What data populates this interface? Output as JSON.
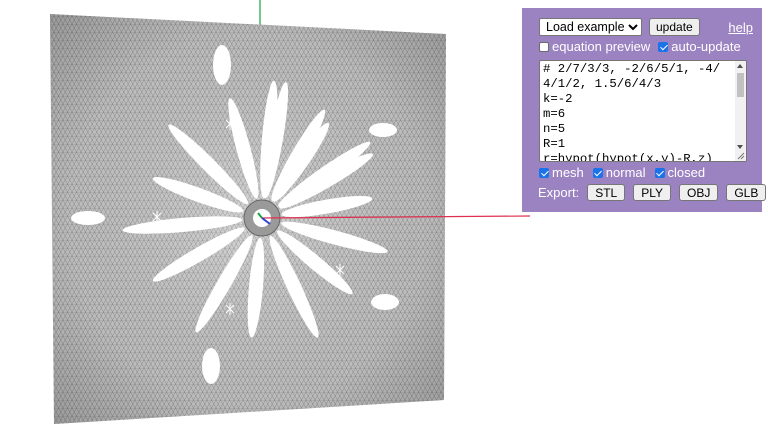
{
  "panel": {
    "example_select": "Load example...",
    "update_label": "update",
    "help_label": "help",
    "equation_preview_label": "equation preview",
    "auto_update_label": "auto-update",
    "code_lines": [
      "# 2/7/3/3, -2/6/5/1, -4/",
      "4/1/2, 1.5/6/4/3",
      "k=-2",
      "m=6",
      "n=5",
      "R=1",
      "r=hypot(hypot(x,y)-R,z)"
    ],
    "mesh_label": "mesh",
    "normal_label": "normal",
    "closed_label": "closed",
    "export_label": "Export:",
    "export_buttons": [
      "STL",
      "PLY",
      "OBJ",
      "GLB"
    ]
  },
  "checkboxes": {
    "equation_preview": false,
    "auto_update": true,
    "mesh": true,
    "normal": true,
    "closed": true
  },
  "colors": {
    "panel_bg": "#9b82c1",
    "axis_x": "#e03050",
    "axis_y": "#20a040",
    "axis_z": "#3040d0",
    "mesh_fill": "#cfcfcf"
  }
}
